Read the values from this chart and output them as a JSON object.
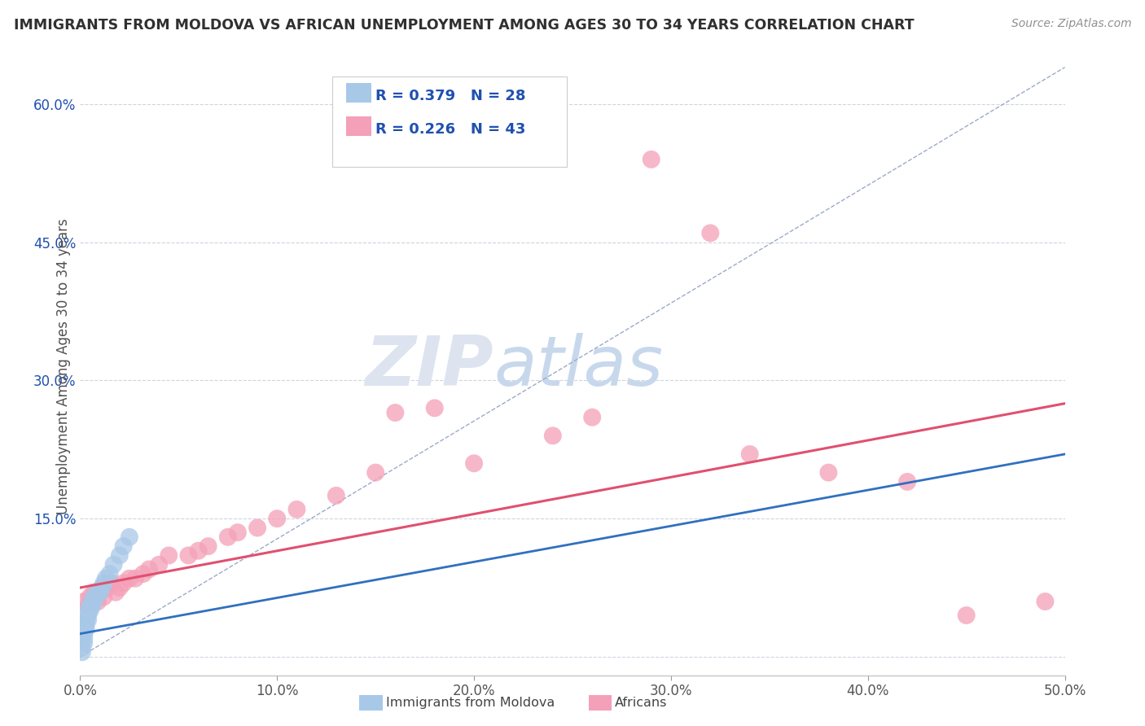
{
  "title": "IMMIGRANTS FROM MOLDOVA VS AFRICAN UNEMPLOYMENT AMONG AGES 30 TO 34 YEARS CORRELATION CHART",
  "source": "Source: ZipAtlas.com",
  "ylabel": "Unemployment Among Ages 30 to 34 years",
  "xlim": [
    0,
    0.5
  ],
  "ylim": [
    -0.02,
    0.65
  ],
  "xticks": [
    0.0,
    0.1,
    0.2,
    0.3,
    0.4,
    0.5
  ],
  "xticklabels": [
    "0.0%",
    "10.0%",
    "20.0%",
    "30.0%",
    "40.0%",
    "50.0%"
  ],
  "yticks": [
    0.0,
    0.15,
    0.3,
    0.45,
    0.6
  ],
  "yticklabels": [
    "",
    "15.0%",
    "30.0%",
    "45.0%",
    "60.0%"
  ],
  "legend_label1": "Immigrants from Moldova",
  "legend_label2": "Africans",
  "R1": 0.379,
  "N1": 28,
  "R2": 0.226,
  "N2": 43,
  "blue_color": "#a8c8e8",
  "pink_color": "#f4a0b8",
  "blue_line_color": "#3070c0",
  "pink_line_color": "#e05070",
  "diag_line_color": "#9aaac8",
  "title_color": "#303030",
  "source_color": "#909090",
  "legend_text_color": "#2050b0",
  "grid_color": "#d0d4e0",
  "watermark_color": "#dde4f0",
  "blue_dots_x": [
    0.001,
    0.001,
    0.002,
    0.002,
    0.002,
    0.003,
    0.003,
    0.003,
    0.004,
    0.004,
    0.004,
    0.005,
    0.005,
    0.006,
    0.006,
    0.007,
    0.007,
    0.008,
    0.009,
    0.01,
    0.011,
    0.012,
    0.013,
    0.015,
    0.017,
    0.02,
    0.022,
    0.025
  ],
  "blue_dots_y": [
    0.005,
    0.01,
    0.015,
    0.02,
    0.025,
    0.03,
    0.035,
    0.04,
    0.04,
    0.045,
    0.05,
    0.05,
    0.055,
    0.055,
    0.06,
    0.06,
    0.065,
    0.065,
    0.07,
    0.07,
    0.075,
    0.08,
    0.085,
    0.09,
    0.1,
    0.11,
    0.12,
    0.13
  ],
  "pink_dots_x": [
    0.002,
    0.004,
    0.005,
    0.006,
    0.007,
    0.008,
    0.009,
    0.01,
    0.011,
    0.012,
    0.014,
    0.016,
    0.018,
    0.02,
    0.022,
    0.025,
    0.028,
    0.032,
    0.035,
    0.04,
    0.045,
    0.055,
    0.06,
    0.065,
    0.075,
    0.08,
    0.09,
    0.1,
    0.11,
    0.13,
    0.15,
    0.16,
    0.18,
    0.2,
    0.24,
    0.26,
    0.29,
    0.32,
    0.34,
    0.38,
    0.42,
    0.45,
    0.49
  ],
  "pink_dots_y": [
    0.06,
    0.055,
    0.065,
    0.06,
    0.07,
    0.065,
    0.06,
    0.07,
    0.075,
    0.065,
    0.075,
    0.08,
    0.07,
    0.075,
    0.08,
    0.085,
    0.085,
    0.09,
    0.095,
    0.1,
    0.11,
    0.11,
    0.115,
    0.12,
    0.13,
    0.135,
    0.14,
    0.15,
    0.16,
    0.175,
    0.2,
    0.265,
    0.27,
    0.21,
    0.24,
    0.26,
    0.54,
    0.46,
    0.22,
    0.2,
    0.19,
    0.045,
    0.06
  ],
  "blue_trendline": [
    0.0,
    0.025,
    0.5,
    0.22
  ],
  "pink_trendline_start_x": 0.0,
  "pink_trendline_start_y": 0.075,
  "pink_trendline_end_x": 0.5,
  "pink_trendline_end_y": 0.275
}
